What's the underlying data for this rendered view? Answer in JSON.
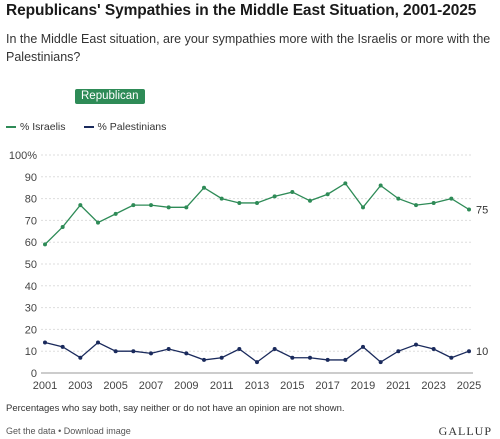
{
  "header": {
    "title": "Republicans' Sympathies in the Middle East Situation, 2001-2025",
    "subtitle": "In the Middle East situation, are your sympathies more with the Israelis or more with the Palestinians?",
    "group_badge": "Republican"
  },
  "colors": {
    "israelis": "#2e8b57",
    "palestinians": "#1a2a5c",
    "badge": "#2e8b57"
  },
  "chart_data": {
    "type": "line",
    "x": [
      2001,
      2002,
      2003,
      2004,
      2005,
      2006,
      2007,
      2008,
      2009,
      2010,
      2011,
      2012,
      2013,
      2014,
      2015,
      2016,
      2017,
      2018,
      2019,
      2020,
      2021,
      2022,
      2023,
      2024,
      2025
    ],
    "x_tick_labels": [
      "2001",
      "2003",
      "2005",
      "2007",
      "2009",
      "2011",
      "2013",
      "2015",
      "2017",
      "2019",
      "2021",
      "2023",
      "2025"
    ],
    "y_tick_labels": [
      "0",
      "10",
      "20",
      "30",
      "40",
      "50",
      "60",
      "70",
      "80",
      "90",
      "100%"
    ],
    "ylim": [
      0,
      100
    ],
    "grid": true,
    "legend_position": "top-left",
    "series": [
      {
        "name": "% Israelis",
        "values": [
          59,
          67,
          77,
          69,
          73,
          77,
          77,
          76,
          76,
          85,
          80,
          78,
          78,
          81,
          83,
          79,
          82,
          87,
          76,
          86,
          80,
          77,
          78,
          80,
          75
        ],
        "end_label": "75"
      },
      {
        "name": "% Palestinians",
        "values": [
          14,
          12,
          7,
          14,
          10,
          10,
          9,
          11,
          9,
          6,
          7,
          11,
          5,
          11,
          7,
          7,
          6,
          6,
          12,
          5,
          10,
          13,
          11,
          7,
          10
        ],
        "end_label": "10"
      }
    ]
  },
  "footnote": "Percentages who say both, say neither or do not have an opinion are not shown.",
  "footer": {
    "get_data": "Get the data",
    "separator": "•",
    "download": "Download image",
    "brand": "GALLUP"
  }
}
